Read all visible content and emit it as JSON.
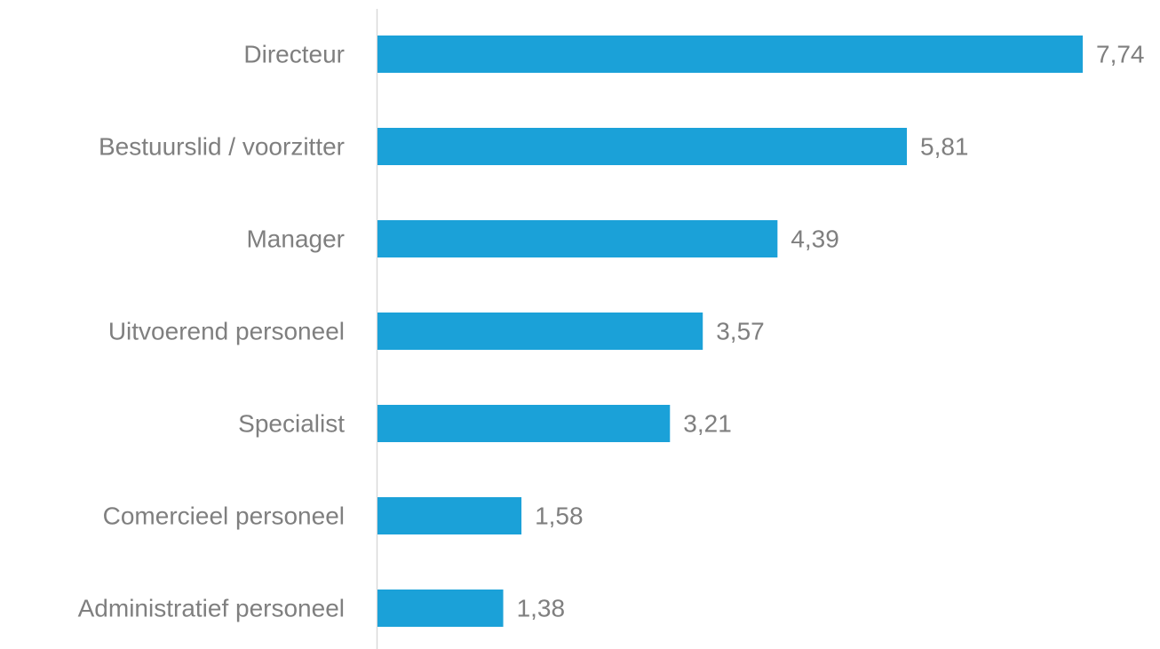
{
  "chart_data": {
    "type": "bar",
    "orientation": "horizontal",
    "categories": [
      "Directeur",
      "Bestuurslid / voorzitter",
      "Manager",
      "Uitvoerend personeel",
      "Specialist",
      "Comercieel personeel",
      "Administratief personeel"
    ],
    "values": [
      7.74,
      5.81,
      4.39,
      3.57,
      3.21,
      1.58,
      1.38
    ],
    "value_labels": [
      "7,74",
      "5,81",
      "4,39",
      "3,57",
      "3,21",
      "1,58",
      "1,38"
    ],
    "color": "#1ba1d8"
  }
}
